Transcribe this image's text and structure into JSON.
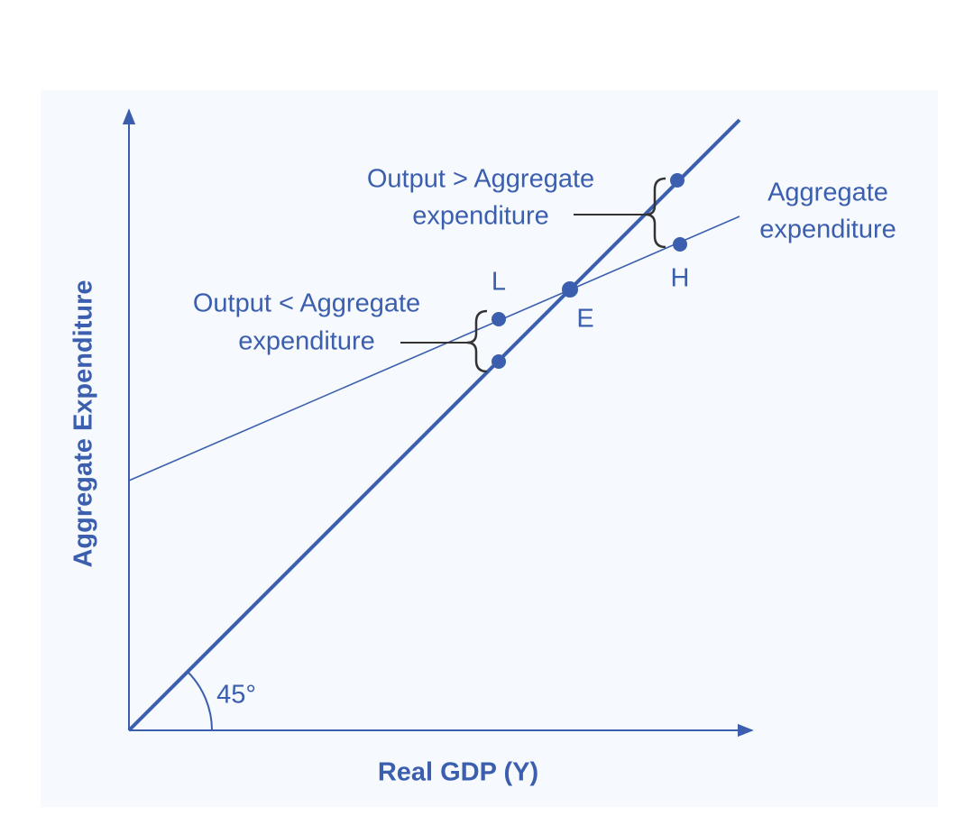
{
  "axes": {
    "x_label": "Real GDP (Y)",
    "y_label": "Aggregate Expenditure"
  },
  "curve_label": [
    "Aggregate",
    "expenditure"
  ],
  "points": [
    {
      "label": "L"
    },
    {
      "label": "E"
    },
    {
      "label": "H"
    }
  ],
  "annotations": [
    {
      "lines": [
        "Output > Aggregate",
        "expenditure"
      ]
    },
    {
      "lines": [
        "Output < Aggregate",
        "expenditure"
      ]
    }
  ],
  "angle_label": "45°"
}
